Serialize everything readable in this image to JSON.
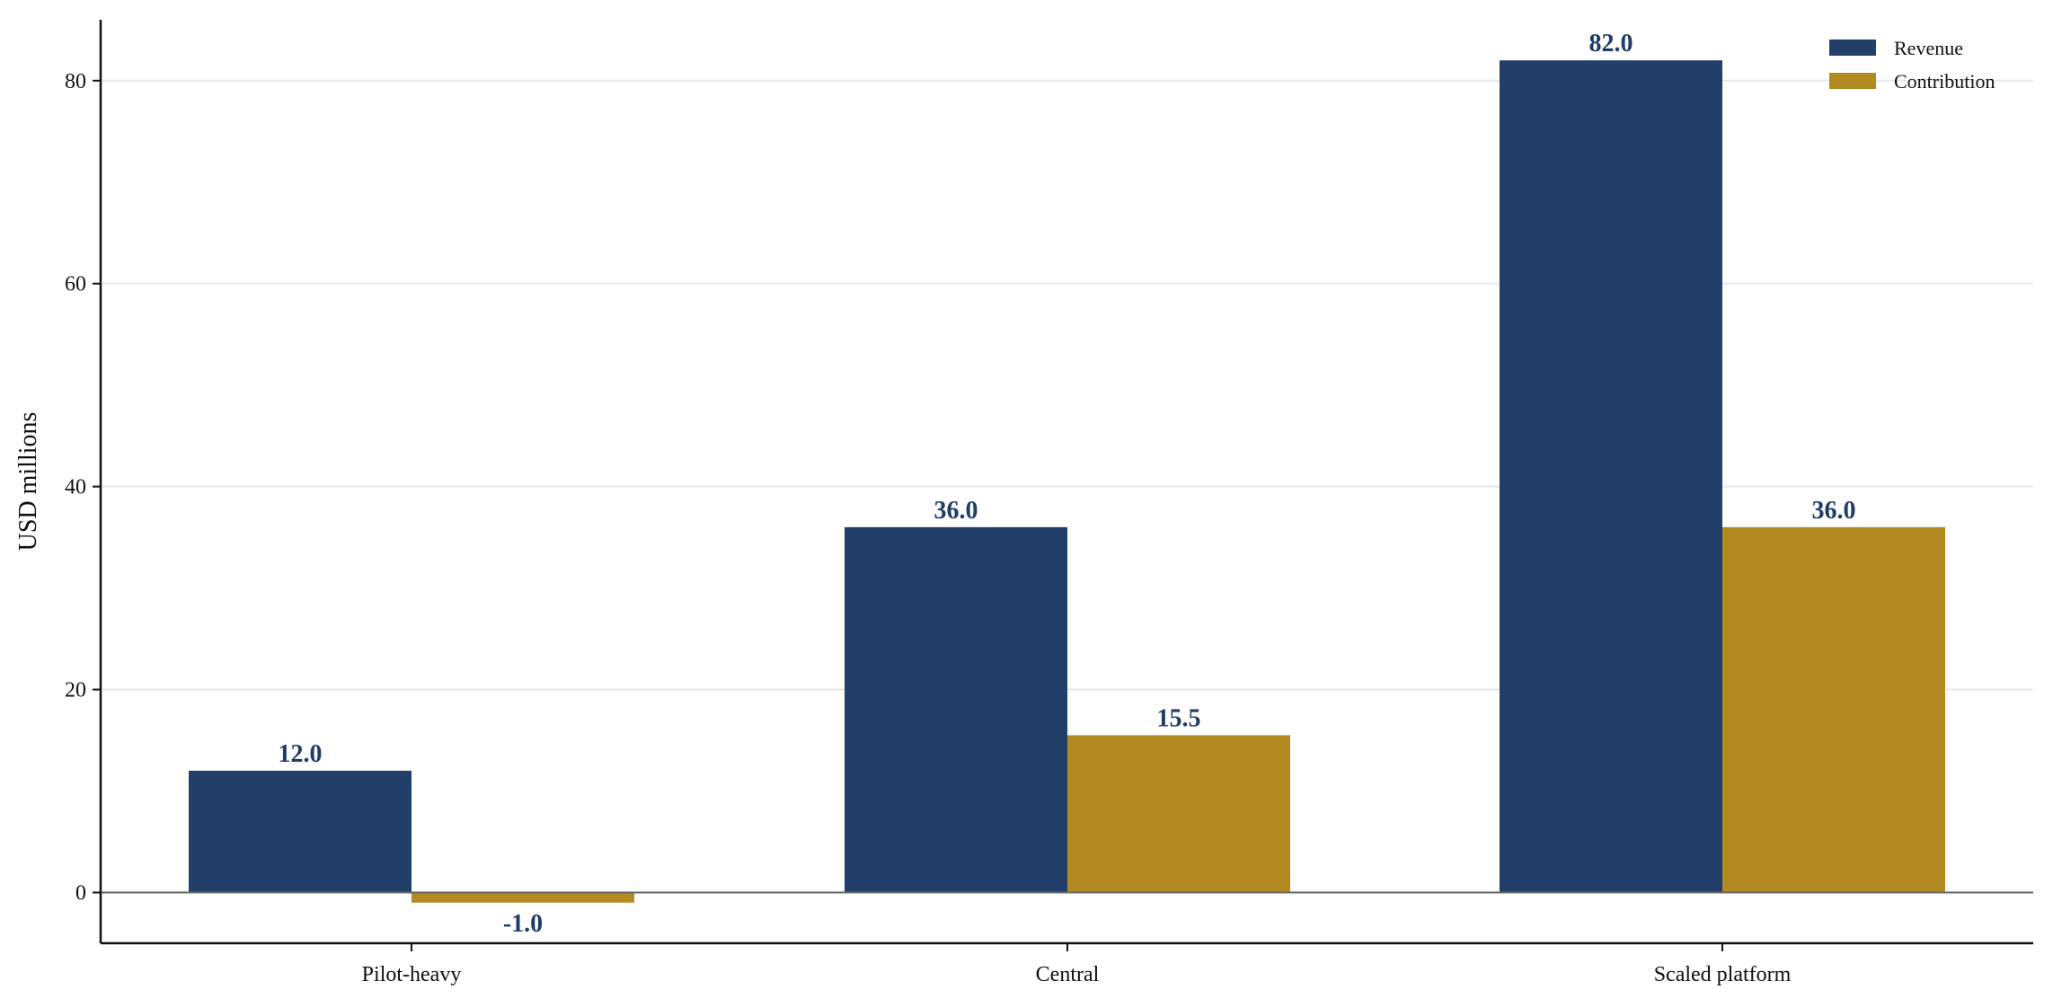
{
  "chart_data": {
    "type": "bar",
    "categories": [
      "Pilot-heavy",
      "Central",
      "Scaled platform"
    ],
    "series": [
      {
        "name": "Revenue",
        "values": [
          12.0,
          36.0,
          82.0
        ],
        "color": "#213f69"
      },
      {
        "name": "Contribution",
        "values": [
          -1.0,
          15.5,
          36.0
        ],
        "color": "#b38a22"
      }
    ],
    "data_labels": [
      [
        "12.0",
        "36.0",
        "82.0"
      ],
      [
        "-1.0",
        "15.5",
        "36.0"
      ]
    ],
    "title": "",
    "xlabel": "",
    "ylabel": "USD millions",
    "ylim": [
      -5,
      86
    ],
    "yticks": [
      0,
      20,
      40,
      60,
      80
    ],
    "grid": true,
    "legend_position": "top-right",
    "colors": {
      "label_text": "#1f3d68",
      "grid": "#e8e8e8",
      "zero_line": "#666666",
      "axis": "#111111"
    }
  }
}
